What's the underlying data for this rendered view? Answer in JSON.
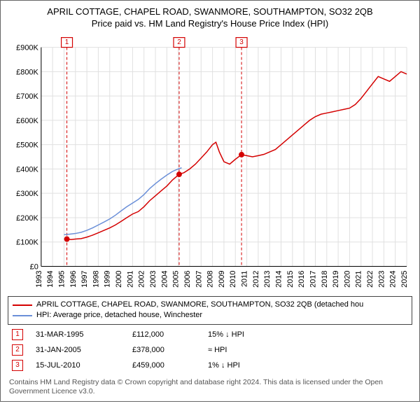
{
  "title": "APRIL COTTAGE, CHAPEL ROAD, SWANMORE, SOUTHAMPTON, SO32 2QB",
  "subtitle": "Price paid vs. HM Land Registry's House Price Index (HPI)",
  "chart": {
    "type": "line",
    "background_color": "#ffffff",
    "grid_color": "#e0e0e0",
    "axis_color": "#000000",
    "label_fontsize": 11,
    "x": {
      "min": 1993,
      "max": 2025,
      "ticks": [
        1993,
        1994,
        1995,
        1996,
        1997,
        1998,
        1999,
        2000,
        2001,
        2002,
        2003,
        2004,
        2005,
        2006,
        2007,
        2008,
        2009,
        2010,
        2011,
        2012,
        2013,
        2014,
        2015,
        2016,
        2017,
        2018,
        2019,
        2020,
        2021,
        2022,
        2023,
        2024,
        2025
      ]
    },
    "y": {
      "min": 0,
      "max": 900000,
      "ticks": [
        0,
        100000,
        200000,
        300000,
        400000,
        500000,
        600000,
        700000,
        800000,
        900000
      ],
      "tick_labels": [
        "£0",
        "£100K",
        "£200K",
        "£300K",
        "£400K",
        "£500K",
        "£600K",
        "£700K",
        "£800K",
        "£900K"
      ]
    },
    "series": [
      {
        "name": "property",
        "label": "APRIL COTTAGE, CHAPEL ROAD, SWANMORE, SOUTHAMPTON, SO32 2QB (detached hou",
        "color": "#d40000",
        "width": 1.6,
        "points": [
          [
            1995.25,
            112000
          ],
          [
            1995.6,
            110000
          ],
          [
            1996.0,
            112000
          ],
          [
            1996.5,
            114000
          ],
          [
            1997.0,
            120000
          ],
          [
            1997.5,
            128000
          ],
          [
            1998.0,
            138000
          ],
          [
            1998.5,
            148000
          ],
          [
            1999.0,
            158000
          ],
          [
            1999.5,
            170000
          ],
          [
            2000.0,
            185000
          ],
          [
            2000.5,
            200000
          ],
          [
            2001.0,
            215000
          ],
          [
            2001.5,
            225000
          ],
          [
            2002.0,
            245000
          ],
          [
            2002.5,
            270000
          ],
          [
            2003.0,
            290000
          ],
          [
            2003.5,
            310000
          ],
          [
            2004.0,
            330000
          ],
          [
            2004.5,
            355000
          ],
          [
            2005.08,
            378000
          ],
          [
            2005.5,
            385000
          ],
          [
            2006.0,
            400000
          ],
          [
            2006.5,
            420000
          ],
          [
            2007.0,
            445000
          ],
          [
            2007.5,
            470000
          ],
          [
            2008.0,
            500000
          ],
          [
            2008.3,
            510000
          ],
          [
            2008.6,
            470000
          ],
          [
            2009.0,
            430000
          ],
          [
            2009.5,
            420000
          ],
          [
            2010.0,
            440000
          ],
          [
            2010.54,
            459000
          ],
          [
            2011.0,
            455000
          ],
          [
            2011.5,
            450000
          ],
          [
            2012.0,
            455000
          ],
          [
            2012.5,
            460000
          ],
          [
            2013.0,
            470000
          ],
          [
            2013.5,
            480000
          ],
          [
            2014.0,
            500000
          ],
          [
            2014.5,
            520000
          ],
          [
            2015.0,
            540000
          ],
          [
            2015.5,
            560000
          ],
          [
            2016.0,
            580000
          ],
          [
            2016.5,
            600000
          ],
          [
            2017.0,
            615000
          ],
          [
            2017.5,
            625000
          ],
          [
            2018.0,
            630000
          ],
          [
            2018.5,
            635000
          ],
          [
            2019.0,
            640000
          ],
          [
            2019.5,
            645000
          ],
          [
            2020.0,
            650000
          ],
          [
            2020.5,
            665000
          ],
          [
            2021.0,
            690000
          ],
          [
            2021.5,
            720000
          ],
          [
            2022.0,
            750000
          ],
          [
            2022.5,
            780000
          ],
          [
            2023.0,
            770000
          ],
          [
            2023.5,
            760000
          ],
          [
            2024.0,
            780000
          ],
          [
            2024.5,
            800000
          ],
          [
            2025.0,
            790000
          ]
        ]
      },
      {
        "name": "hpi",
        "label": "HPI: Average price, detached house, Winchester",
        "color": "#6a8fd8",
        "width": 1.2,
        "points": [
          [
            1995.0,
            130000
          ],
          [
            1995.5,
            132000
          ],
          [
            1996.0,
            135000
          ],
          [
            1996.5,
            140000
          ],
          [
            1997.0,
            148000
          ],
          [
            1997.5,
            158000
          ],
          [
            1998.0,
            170000
          ],
          [
            1998.5,
            182000
          ],
          [
            1999.0,
            195000
          ],
          [
            1999.5,
            210000
          ],
          [
            2000.0,
            228000
          ],
          [
            2000.5,
            245000
          ],
          [
            2001.0,
            260000
          ],
          [
            2001.5,
            275000
          ],
          [
            2002.0,
            295000
          ],
          [
            2002.5,
            320000
          ],
          [
            2003.0,
            340000
          ],
          [
            2003.5,
            358000
          ],
          [
            2004.0,
            375000
          ],
          [
            2004.5,
            390000
          ],
          [
            2005.0,
            400000
          ],
          [
            2005.3,
            405000
          ]
        ]
      }
    ],
    "sales": [
      {
        "num": "1",
        "year": 1995.25,
        "value": 112000,
        "date": "31-MAR-1995",
        "price": "£112,000",
        "note": "15% ↓ HPI",
        "color": "#d40000"
      },
      {
        "num": "2",
        "year": 2005.08,
        "value": 378000,
        "date": "31-JAN-2005",
        "price": "£378,000",
        "note": "≈ HPI",
        "color": "#d40000"
      },
      {
        "num": "3",
        "year": 2010.54,
        "value": 459000,
        "date": "15-JUL-2010",
        "price": "£459,000",
        "note": "1% ↓ HPI",
        "color": "#d40000"
      }
    ]
  },
  "footer": "Contains HM Land Registry data © Crown copyright and database right 2024. This data is licensed under the Open Government Licence v3.0."
}
